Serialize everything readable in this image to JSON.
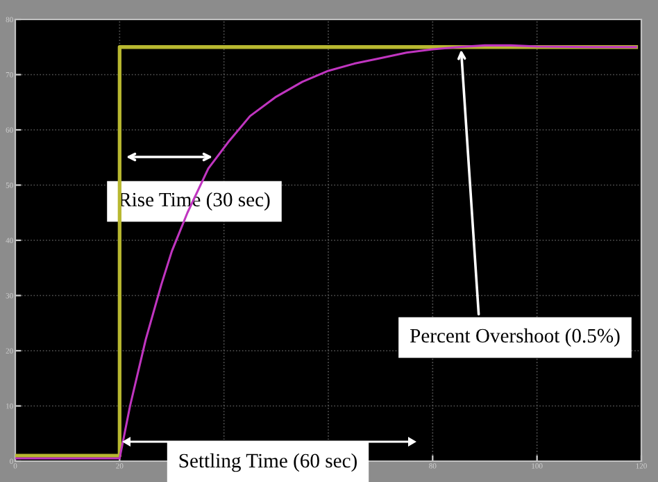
{
  "chart_data": {
    "type": "line",
    "xlim": [
      0,
      120
    ],
    "ylim": [
      0,
      80
    ],
    "xticks": [
      0,
      20,
      {
        "value": 40,
        "label": null
      },
      {
        "value": 60,
        "label": null
      },
      80,
      100,
      120
    ],
    "yticks": [
      0,
      10,
      20,
      30,
      40,
      50,
      60,
      70,
      80
    ],
    "grid": true,
    "series": [
      {
        "color": "#b8b830",
        "x": [
          0,
          20,
          20,
          119
        ],
        "values": [
          1,
          1,
          75,
          75
        ]
      },
      {
        "color": "#c035c0",
        "x": [
          0,
          20,
          22,
          25,
          28,
          30,
          33,
          37,
          41,
          45,
          50,
          55,
          60,
          65,
          70,
          75,
          80,
          85,
          90,
          95,
          100,
          110,
          119
        ],
        "values": [
          0.5,
          0.5,
          10,
          22,
          32,
          38,
          45,
          53,
          58,
          62.5,
          66,
          68.7,
          70.7,
          72,
          73,
          74,
          74.6,
          75,
          75.3,
          75.3,
          75.1,
          75,
          75
        ]
      }
    ],
    "annotations": [
      "Rise Time (30 sec)",
      "Percent Overshoot (0.5%)",
      "Settling Time (60 sec)"
    ]
  }
}
